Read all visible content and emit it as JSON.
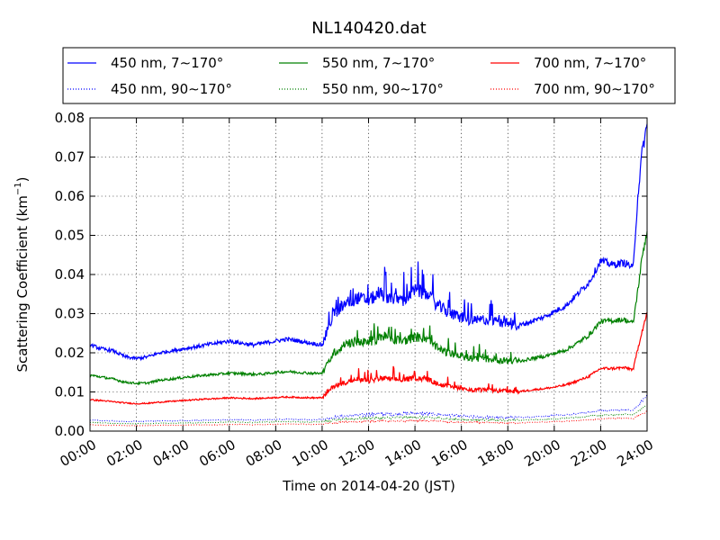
{
  "chart_data": {
    "type": "line",
    "title": "NL140420.dat",
    "xlabel": "Time on 2014-04-20 (JST)",
    "ylabel": "Scattering Coefficient (km",
    "ylabel_sup": "−1",
    "ylabel_close": ")",
    "x_unit": "hour",
    "xlim": [
      0,
      24
    ],
    "ylim": [
      0.0,
      0.08
    ],
    "grid": true,
    "legend_position": "top",
    "x_ticks": [
      0,
      2,
      4,
      6,
      8,
      10,
      12,
      14,
      16,
      18,
      20,
      22,
      24
    ],
    "x_tick_labels": [
      "00:00",
      "02:00",
      "04:00",
      "06:00",
      "08:00",
      "10:00",
      "12:00",
      "14:00",
      "16:00",
      "18:00",
      "20:00",
      "22:00",
      "24:00"
    ],
    "y_ticks": [
      0.0,
      0.01,
      0.02,
      0.03,
      0.04,
      0.05,
      0.06,
      0.07,
      0.08
    ],
    "y_tick_labels": [
      "0.00",
      "0.01",
      "0.02",
      "0.03",
      "0.04",
      "0.05",
      "0.06",
      "0.07",
      "0.08"
    ],
    "x": [
      0,
      0.5,
      1,
      1.5,
      2,
      2.5,
      3,
      3.5,
      4,
      4.5,
      5,
      5.5,
      6,
      6.5,
      7,
      7.5,
      8,
      8.5,
      9,
      9.5,
      10,
      10.5,
      11,
      11.5,
      12,
      12.5,
      13,
      13.5,
      14,
      14.5,
      15,
      15.5,
      16,
      16.5,
      17,
      17.5,
      18,
      18.5,
      19,
      19.5,
      20,
      20.5,
      21,
      21.5,
      22,
      22.5,
      23,
      23.2,
      23.4,
      23.6,
      23.8,
      24
    ],
    "series": [
      {
        "name": "450 nm, 7∼170°",
        "color": "#0000ff",
        "style": "solid",
        "values": [
          0.022,
          0.021,
          0.0205,
          0.019,
          0.0185,
          0.019,
          0.02,
          0.0205,
          0.021,
          0.0215,
          0.022,
          0.0225,
          0.023,
          0.0225,
          0.022,
          0.0225,
          0.023,
          0.0235,
          0.023,
          0.0225,
          0.022,
          0.03,
          0.0325,
          0.034,
          0.0335,
          0.035,
          0.034,
          0.0335,
          0.036,
          0.035,
          0.032,
          0.03,
          0.029,
          0.028,
          0.0285,
          0.028,
          0.0275,
          0.027,
          0.028,
          0.029,
          0.0305,
          0.032,
          0.035,
          0.038,
          0.0435,
          0.0425,
          0.043,
          0.0425,
          0.0415,
          0.06,
          0.072,
          0.078
        ]
      },
      {
        "name": "450 nm, 90∼170°",
        "color": "#0000ff",
        "style": "dotted",
        "values": [
          0.0028,
          0.0027,
          0.0026,
          0.0025,
          0.0025,
          0.0025,
          0.0026,
          0.0026,
          0.0027,
          0.0027,
          0.0028,
          0.0028,
          0.0029,
          0.0029,
          0.0028,
          0.0029,
          0.003,
          0.003,
          0.003,
          0.0029,
          0.003,
          0.0035,
          0.0038,
          0.004,
          0.0042,
          0.0044,
          0.0043,
          0.0044,
          0.0046,
          0.0044,
          0.0042,
          0.004,
          0.0038,
          0.0036,
          0.0036,
          0.0035,
          0.0035,
          0.0035,
          0.0036,
          0.0038,
          0.004,
          0.0042,
          0.0045,
          0.0048,
          0.0052,
          0.0053,
          0.0055,
          0.0054,
          0.0053,
          0.0065,
          0.0078,
          0.009
        ]
      },
      {
        "name": "550 nm, 7∼170°",
        "color": "#008000",
        "style": "solid",
        "values": [
          0.0143,
          0.0138,
          0.0133,
          0.0125,
          0.0122,
          0.0123,
          0.013,
          0.0133,
          0.0137,
          0.014,
          0.0143,
          0.0145,
          0.0148,
          0.0147,
          0.0145,
          0.0146,
          0.015,
          0.0152,
          0.015,
          0.0148,
          0.0147,
          0.02,
          0.022,
          0.023,
          0.0225,
          0.024,
          0.0235,
          0.023,
          0.024,
          0.0235,
          0.021,
          0.0198,
          0.0192,
          0.0185,
          0.0185,
          0.0182,
          0.018,
          0.0178,
          0.0185,
          0.019,
          0.0198,
          0.0207,
          0.0225,
          0.0245,
          0.028,
          0.0282,
          0.0285,
          0.028,
          0.0276,
          0.036,
          0.045,
          0.051
        ]
      },
      {
        "name": "550 nm, 90∼170°",
        "color": "#008000",
        "style": "dotted",
        "values": [
          0.0022,
          0.0021,
          0.002,
          0.0019,
          0.0019,
          0.0019,
          0.002,
          0.002,
          0.0021,
          0.0021,
          0.0022,
          0.0022,
          0.0023,
          0.0023,
          0.0022,
          0.0023,
          0.0024,
          0.0024,
          0.0024,
          0.0023,
          0.0024,
          0.0028,
          0.003,
          0.0032,
          0.0033,
          0.0034,
          0.0034,
          0.0035,
          0.0036,
          0.0035,
          0.0033,
          0.0031,
          0.003,
          0.0029,
          0.0029,
          0.0028,
          0.0028,
          0.0028,
          0.0029,
          0.003,
          0.0031,
          0.0033,
          0.0035,
          0.0038,
          0.0041,
          0.0042,
          0.0043,
          0.0043,
          0.0042,
          0.005,
          0.0058,
          0.0065
        ]
      },
      {
        "name": "700 nm, 7∼170°",
        "color": "#ff0000",
        "style": "solid",
        "values": [
          0.008,
          0.0078,
          0.0075,
          0.0072,
          0.007,
          0.0071,
          0.0074,
          0.0076,
          0.0078,
          0.008,
          0.0082,
          0.0083,
          0.0085,
          0.0084,
          0.0083,
          0.0084,
          0.0086,
          0.0087,
          0.0086,
          0.0085,
          0.0085,
          0.0115,
          0.0125,
          0.013,
          0.0128,
          0.0135,
          0.0133,
          0.013,
          0.0136,
          0.0133,
          0.012,
          0.0113,
          0.011,
          0.0105,
          0.0105,
          0.0103,
          0.0102,
          0.0101,
          0.0105,
          0.0108,
          0.0112,
          0.0118,
          0.0128,
          0.014,
          0.016,
          0.016,
          0.0162,
          0.016,
          0.0157,
          0.021,
          0.026,
          0.03
        ]
      },
      {
        "name": "700 nm, 90∼170°",
        "color": "#ff0000",
        "style": "dotted",
        "values": [
          0.0016,
          0.0015,
          0.0015,
          0.0014,
          0.0014,
          0.0014,
          0.0015,
          0.0015,
          0.0015,
          0.0016,
          0.0016,
          0.0016,
          0.0017,
          0.0017,
          0.0016,
          0.0017,
          0.0017,
          0.0018,
          0.0018,
          0.0017,
          0.0018,
          0.0021,
          0.0023,
          0.0024,
          0.0025,
          0.0026,
          0.0025,
          0.0026,
          0.0027,
          0.0026,
          0.0025,
          0.0023,
          0.0022,
          0.0022,
          0.0022,
          0.0021,
          0.0021,
          0.0021,
          0.0022,
          0.0023,
          0.0024,
          0.0025,
          0.0027,
          0.0029,
          0.0031,
          0.0032,
          0.0033,
          0.0033,
          0.0032,
          0.0038,
          0.0044,
          0.005
        ]
      }
    ]
  }
}
